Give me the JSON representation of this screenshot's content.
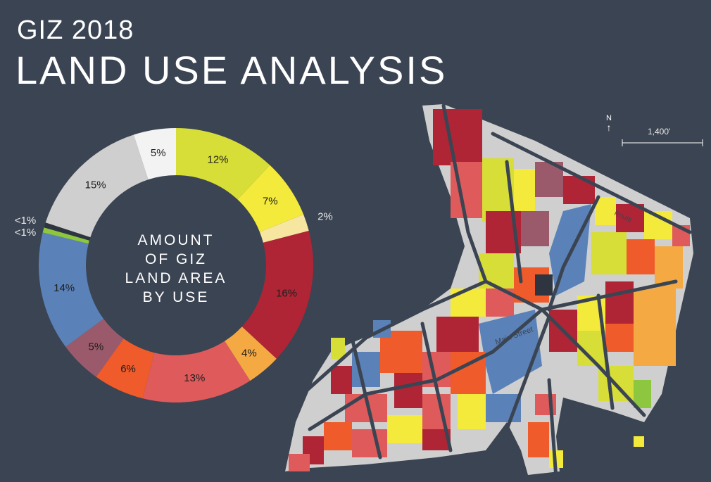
{
  "header": {
    "title_small": "GIZ 2018",
    "title_large": "LAND USE ANALYSIS"
  },
  "center_label": [
    "AMOUNT",
    "OF GIZ",
    "LAND AREA",
    "BY USE"
  ],
  "chart_data": {
    "type": "pie",
    "style": "donut",
    "slices": [
      {
        "label": "12%",
        "value": 12,
        "color": "#d7de37"
      },
      {
        "label": "7%",
        "value": 7,
        "color": "#f4ea3c"
      },
      {
        "label": "2%",
        "value": 2,
        "color": "#f7e6a0"
      },
      {
        "label": "16%",
        "value": 16,
        "color": "#b02535"
      },
      {
        "label": "4%",
        "value": 4,
        "color": "#f4a943"
      },
      {
        "label": "13%",
        "value": 13,
        "color": "#df5a5b"
      },
      {
        "label": "6%",
        "value": 6,
        "color": "#ef5b2a"
      },
      {
        "label": "5%",
        "value": 5,
        "color": "#9b5a6c"
      },
      {
        "label": "14%",
        "value": 14,
        "color": "#5a82b8"
      },
      {
        "label": "<1%",
        "value": 0.6,
        "color": "#8dc63f"
      },
      {
        "label": "<1%",
        "value": 0.6,
        "color": "#2f3540"
      },
      {
        "label": "15%",
        "value": 15,
        "color": "#cfcfcf"
      },
      {
        "label": "5%",
        "value": 5,
        "color": "#f3f3f3"
      }
    ]
  },
  "map": {
    "north_label": "N",
    "scale_label": "1,400'",
    "street_labels": [
      "Main Street",
      "Route"
    ]
  },
  "colors": {
    "background": "#3b4452",
    "streets": "#3b4452"
  }
}
